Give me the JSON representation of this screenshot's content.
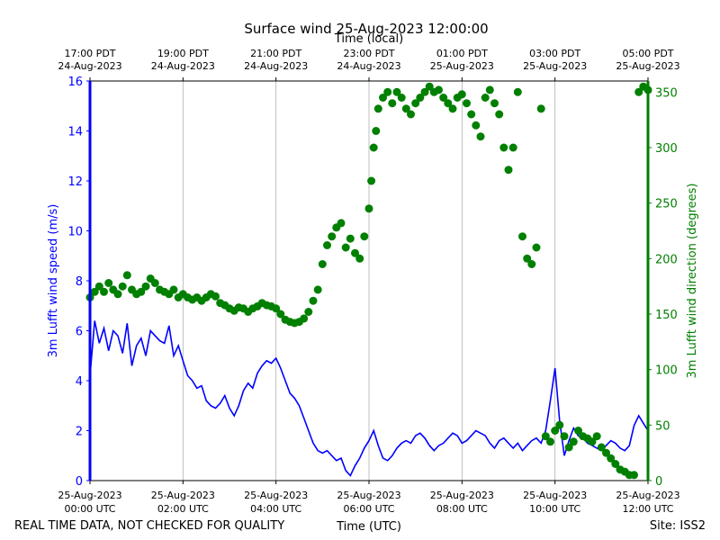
{
  "chart_data": {
    "type": "line+scatter",
    "title": "Surface wind 25-Aug-2023 12:00:00",
    "top_axis_label": "Time (local)",
    "top_ticks": [
      {
        "hour": 0,
        "line1": "17:00 PDT",
        "line2": "24-Aug-2023"
      },
      {
        "hour": 2,
        "line1": "19:00 PDT",
        "line2": "24-Aug-2023"
      },
      {
        "hour": 4,
        "line1": "21:00 PDT",
        "line2": "24-Aug-2023"
      },
      {
        "hour": 6,
        "line1": "23:00 PDT",
        "line2": "24-Aug-2023"
      },
      {
        "hour": 8,
        "line1": "01:00 PDT",
        "line2": "25-Aug-2023"
      },
      {
        "hour": 10,
        "line1": "03:00 PDT",
        "line2": "25-Aug-2023"
      },
      {
        "hour": 12,
        "line1": "05:00 PDT",
        "line2": "25-Aug-2023"
      }
    ],
    "bottom_axis_label": "Time (UTC)",
    "bottom_ticks": [
      {
        "hour": 0,
        "line1": "25-Aug-2023",
        "line2": "00:00 UTC"
      },
      {
        "hour": 2,
        "line1": "25-Aug-2023",
        "line2": "02:00 UTC"
      },
      {
        "hour": 4,
        "line1": "25-Aug-2023",
        "line2": "04:00 UTC"
      },
      {
        "hour": 6,
        "line1": "25-Aug-2023",
        "line2": "06:00 UTC"
      },
      {
        "hour": 8,
        "line1": "25-Aug-2023",
        "line2": "08:00 UTC"
      },
      {
        "hour": 10,
        "line1": "25-Aug-2023",
        "line2": "10:00 UTC"
      },
      {
        "hour": 12,
        "line1": "25-Aug-2023",
        "line2": "12:00 UTC"
      }
    ],
    "xlim_hours": [
      0,
      12
    ],
    "left_axis": {
      "label": "3m Lufft wind speed (m/s)",
      "color": "#0000ff",
      "ylim": [
        0,
        16
      ],
      "ticks": [
        0,
        2,
        4,
        6,
        8,
        10,
        12,
        14,
        16
      ]
    },
    "right_axis": {
      "label": "3m Lufft wind direction (degrees)",
      "color": "#008000",
      "ylim": [
        0,
        360
      ],
      "ticks": [
        0,
        50,
        100,
        150,
        200,
        250,
        300,
        350
      ]
    },
    "grid_x": true,
    "series": [
      {
        "name": "wind speed",
        "style": "line",
        "color": "#0000ff",
        "x_hours": [
          0,
          0.1,
          0.2,
          0.3,
          0.4,
          0.5,
          0.6,
          0.7,
          0.8,
          0.9,
          1.0,
          1.1,
          1.2,
          1.3,
          1.4,
          1.5,
          1.6,
          1.7,
          1.8,
          1.9,
          2.0,
          2.1,
          2.2,
          2.3,
          2.4,
          2.5,
          2.6,
          2.7,
          2.8,
          2.9,
          3.0,
          3.1,
          3.2,
          3.3,
          3.4,
          3.5,
          3.6,
          3.7,
          3.8,
          3.9,
          4.0,
          4.1,
          4.2,
          4.3,
          4.4,
          4.5,
          4.6,
          4.7,
          4.8,
          4.9,
          5.0,
          5.1,
          5.2,
          5.3,
          5.4,
          5.5,
          5.6,
          5.7,
          5.8,
          5.9,
          6.0,
          6.1,
          6.2,
          6.3,
          6.4,
          6.5,
          6.6,
          6.7,
          6.8,
          6.9,
          7.0,
          7.1,
          7.2,
          7.3,
          7.4,
          7.5,
          7.6,
          7.7,
          7.8,
          7.9,
          8.0,
          8.1,
          8.2,
          8.3,
          8.4,
          8.5,
          8.6,
          8.7,
          8.8,
          8.9,
          9.0,
          9.1,
          9.2,
          9.3,
          9.4,
          9.5,
          9.6,
          9.7,
          9.8,
          9.9,
          10.0,
          10.1,
          10.2,
          10.3,
          10.4,
          10.5,
          10.6,
          10.7,
          10.8,
          10.9,
          11.0,
          11.1,
          11.2,
          11.3,
          11.4,
          11.5,
          11.6,
          11.7,
          11.8,
          11.9,
          12.0
        ],
        "values": [
          4.2,
          6.4,
          5.5,
          6.1,
          5.2,
          6.0,
          5.8,
          5.1,
          6.3,
          4.6,
          5.4,
          5.7,
          5.0,
          6.0,
          5.8,
          5.6,
          5.5,
          6.2,
          5.0,
          5.4,
          4.8,
          4.2,
          4.0,
          3.7,
          3.8,
          3.2,
          3.0,
          2.9,
          3.1,
          3.4,
          2.9,
          2.6,
          3.0,
          3.6,
          3.9,
          3.7,
          4.3,
          4.6,
          4.8,
          4.7,
          4.9,
          4.5,
          4.0,
          3.5,
          3.3,
          3.0,
          2.5,
          2.0,
          1.5,
          1.2,
          1.1,
          1.2,
          1.0,
          0.8,
          0.9,
          0.4,
          0.2,
          0.6,
          0.9,
          1.3,
          1.6,
          2.0,
          1.4,
          0.9,
          0.8,
          1.0,
          1.3,
          1.5,
          1.6,
          1.5,
          1.8,
          1.9,
          1.7,
          1.4,
          1.2,
          1.4,
          1.5,
          1.7,
          1.9,
          1.8,
          1.5,
          1.6,
          1.8,
          2.0,
          1.9,
          1.8,
          1.5,
          1.3,
          1.6,
          1.7,
          1.5,
          1.3,
          1.5,
          1.2,
          1.4,
          1.6,
          1.7,
          1.5,
          2.0,
          3.2,
          4.5,
          2.4,
          1.0,
          1.6,
          2.1,
          1.8,
          1.7,
          1.5,
          1.4,
          1.3,
          1.2,
          1.4,
          1.6,
          1.5,
          1.3,
          1.2,
          1.4,
          2.2,
          2.6,
          2.3,
          2.0
        ]
      },
      {
        "name": "wind direction",
        "style": "scatter",
        "color": "#008000",
        "x_hours": [
          0,
          0.1,
          0.2,
          0.3,
          0.4,
          0.5,
          0.6,
          0.7,
          0.8,
          0.9,
          1.0,
          1.1,
          1.2,
          1.3,
          1.4,
          1.5,
          1.6,
          1.7,
          1.8,
          1.9,
          2.0,
          2.1,
          2.2,
          2.3,
          2.4,
          2.5,
          2.6,
          2.7,
          2.8,
          2.9,
          3.0,
          3.1,
          3.2,
          3.3,
          3.4,
          3.5,
          3.6,
          3.7,
          3.8,
          3.9,
          4.0,
          4.1,
          4.2,
          4.3,
          4.4,
          4.5,
          4.6,
          4.7,
          4.8,
          4.9,
          5.0,
          5.1,
          5.2,
          5.3,
          5.4,
          5.5,
          5.6,
          5.7,
          5.8,
          5.9,
          6.0,
          6.05,
          6.1,
          6.15,
          6.2,
          6.3,
          6.4,
          6.5,
          6.6,
          6.7,
          6.8,
          6.9,
          7.0,
          7.1,
          7.2,
          7.3,
          7.4,
          7.5,
          7.6,
          7.7,
          7.8,
          7.9,
          8.0,
          8.1,
          8.2,
          8.3,
          8.4,
          8.5,
          8.6,
          8.7,
          8.8,
          8.9,
          9.0,
          9.1,
          9.2,
          9.3,
          9.4,
          9.5,
          9.6,
          9.7,
          9.8,
          9.9,
          10.0,
          10.1,
          10.2,
          10.3,
          10.4,
          10.5,
          10.6,
          10.7,
          10.8,
          10.9,
          11.0,
          11.1,
          11.2,
          11.3,
          11.4,
          11.5,
          11.6,
          11.7,
          11.8,
          11.9,
          12.0
        ],
        "values": [
          165,
          170,
          175,
          170,
          178,
          172,
          168,
          175,
          185,
          172,
          168,
          170,
          175,
          182,
          178,
          172,
          170,
          168,
          172,
          165,
          168,
          165,
          163,
          165,
          162,
          165,
          168,
          166,
          160,
          158,
          155,
          153,
          156,
          155,
          152,
          155,
          157,
          160,
          158,
          157,
          155,
          150,
          145,
          143,
          142,
          143,
          146,
          152,
          162,
          172,
          195,
          212,
          220,
          228,
          232,
          210,
          218,
          205,
          200,
          220,
          245,
          270,
          300,
          315,
          335,
          345,
          350,
          340,
          350,
          345,
          335,
          330,
          340,
          345,
          350,
          355,
          350,
          352,
          345,
          340,
          335,
          345,
          348,
          340,
          330,
          320,
          310,
          345,
          352,
          340,
          330,
          300,
          280,
          300,
          350,
          220,
          200,
          195,
          210,
          335,
          40,
          35,
          45,
          50,
          40,
          30,
          35,
          45,
          40,
          38,
          35,
          40,
          30,
          25,
          20,
          15,
          10,
          8,
          5,
          5,
          350,
          355,
          352
        ]
      }
    ],
    "footer_left": "REAL TIME DATA, NOT CHECKED FOR QUALITY",
    "footer_right": "Site: ISS2"
  }
}
